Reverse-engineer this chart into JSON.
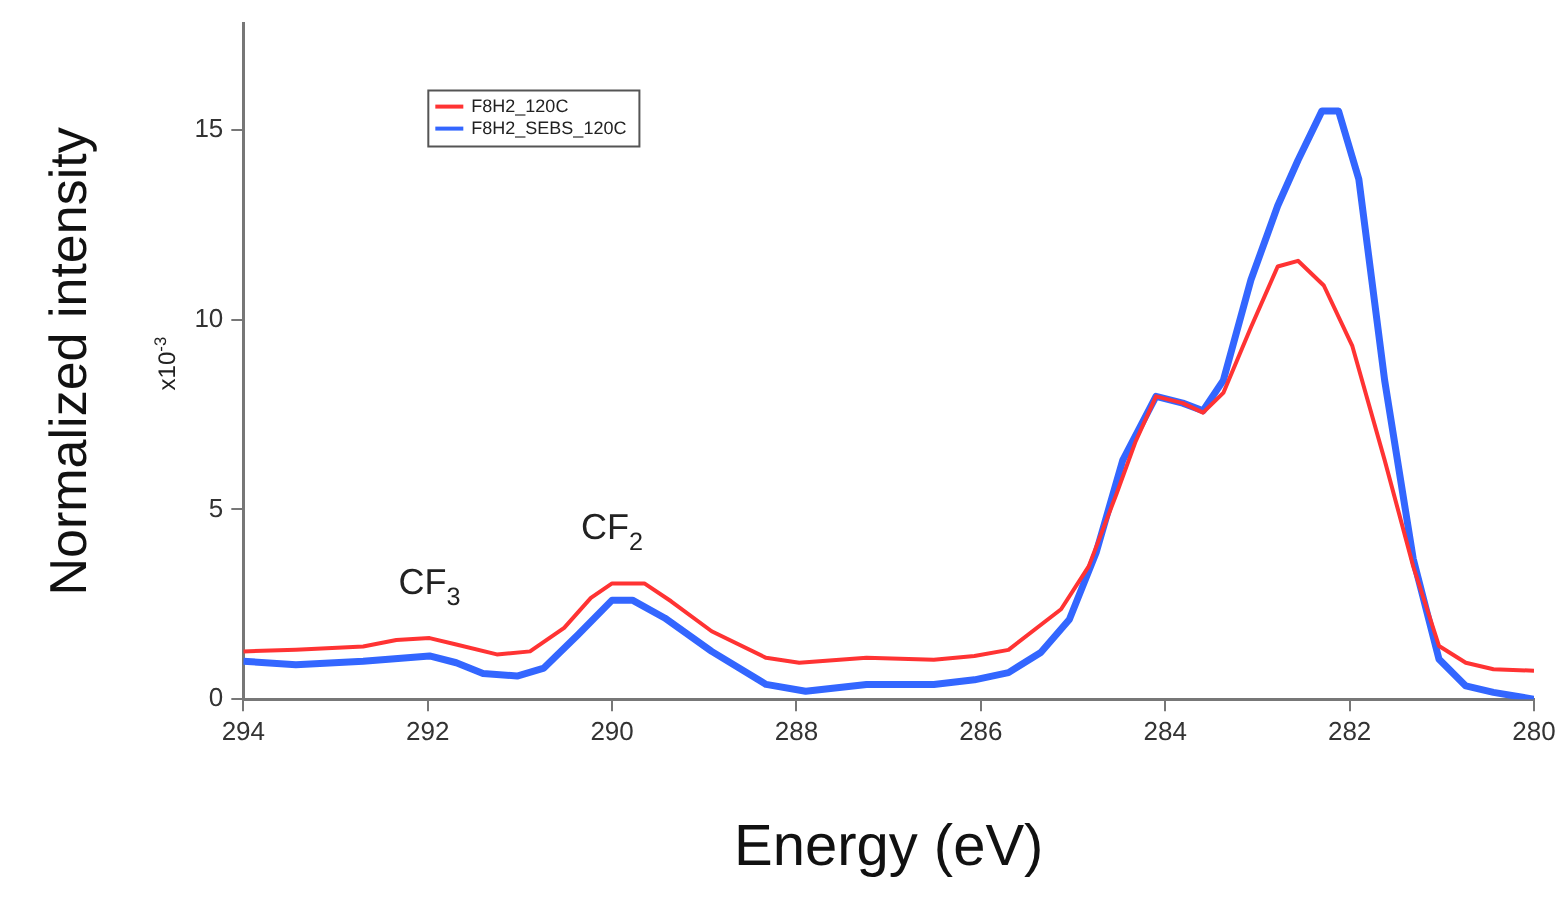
{
  "chart_data": {
    "type": "line",
    "xlabel": "Energy (eV)",
    "ylabel": "Normalized intensity",
    "xlim": [
      294,
      280
    ],
    "xticks": [
      294,
      292,
      290,
      288,
      286,
      284,
      282,
      280
    ],
    "ylim": [
      0,
      17.8
    ],
    "yticks": [
      0,
      5,
      10,
      15
    ],
    "grid": false,
    "legend": "top left",
    "marker": "none",
    "line_style": "solid",
    "annotations": [
      {
        "text": "CF$_{3}$",
        "x": 291.98,
        "y": 1.61
      },
      {
        "text": "CF$_{2}$",
        "x": 290.0,
        "y": 3.05
      },
      "x10$^{-3}$"
    ],
    "series": [
      {
        "name": "F8H2_120C",
        "color": "#ff3333",
        "x": [
          294,
          293.43,
          292.7,
          292.34,
          291.98,
          291.69,
          291.25,
          290.89,
          290.52,
          290.23,
          290.0,
          289.65,
          289.36,
          288.92,
          288.33,
          287.97,
          287.24,
          286.51,
          286.07,
          285.7,
          285.13,
          284.83,
          284.53,
          284.32,
          284.1,
          283.81,
          283.59,
          283.37,
          283.07,
          282.78,
          282.56,
          282.28,
          281.97,
          281.62,
          281.31,
          281.03,
          280.74,
          280.44,
          280
        ],
        "values": [
          1.26,
          1.3,
          1.39,
          1.56,
          1.61,
          1.44,
          1.18,
          1.26,
          1.88,
          2.67,
          3.05,
          3.05,
          2.58,
          1.79,
          1.09,
          0.96,
          1.09,
          1.04,
          1.14,
          1.3,
          2.37,
          3.5,
          5.4,
          6.8,
          7.98,
          7.8,
          7.55,
          8.07,
          9.8,
          11.4,
          11.55,
          10.9,
          9.3,
          6.3,
          3.5,
          1.4,
          0.96,
          0.79,
          0.75
        ]
      },
      {
        "name": "F8H2_SEBS_120C",
        "color": "#3366ff",
        "x": [
          294,
          293.43,
          292.7,
          291.98,
          291.69,
          291.4,
          291.03,
          290.74,
          290.37,
          290.0,
          289.78,
          289.43,
          288.92,
          288.33,
          287.9,
          287.24,
          286.51,
          286.07,
          285.7,
          285.35,
          285.04,
          284.75,
          284.46,
          284.1,
          283.81,
          283.59,
          283.37,
          283.07,
          282.78,
          282.56,
          282.3,
          282.12,
          281.9,
          281.62,
          281.31,
          281.03,
          280.74,
          280.44,
          280
        ],
        "values": [
          1.0,
          0.91,
          1.0,
          1.14,
          0.96,
          0.68,
          0.61,
          0.82,
          1.7,
          2.61,
          2.61,
          2.14,
          1.26,
          0.39,
          0.21,
          0.39,
          0.39,
          0.51,
          0.7,
          1.23,
          2.1,
          3.86,
          6.3,
          7.98,
          7.8,
          7.6,
          8.4,
          11.05,
          13,
          14.2,
          15.5,
          15.5,
          13.7,
          8.4,
          3.7,
          1.05,
          0.35,
          0.18,
          0.0
        ]
      }
    ]
  }
}
